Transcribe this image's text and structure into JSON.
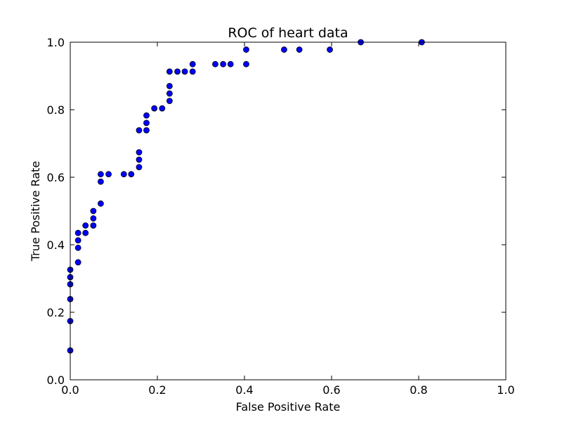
{
  "chart_data": {
    "type": "scatter",
    "title": "ROC of heart data",
    "xlabel": "False Positive Rate",
    "ylabel": "True Positive Rate",
    "xlim": [
      0.0,
      1.0
    ],
    "ylim": [
      0.0,
      1.0
    ],
    "xticks": [
      "0.0",
      "0.2",
      "0.4",
      "0.6",
      "0.8",
      "1.0"
    ],
    "yticks": [
      "0.0",
      "0.2",
      "0.4",
      "0.6",
      "0.8",
      "1.0"
    ],
    "grid": false,
    "marker_color": "#0000ff",
    "marker_edge_color": "#000000",
    "points": [
      [
        0.0,
        0.087
      ],
      [
        0.0,
        0.174
      ],
      [
        0.0,
        0.239
      ],
      [
        0.0,
        0.283
      ],
      [
        0.0,
        0.304
      ],
      [
        0.0,
        0.326
      ],
      [
        0.018,
        0.348
      ],
      [
        0.018,
        0.391
      ],
      [
        0.018,
        0.413
      ],
      [
        0.018,
        0.435
      ],
      [
        0.035,
        0.435
      ],
      [
        0.035,
        0.457
      ],
      [
        0.053,
        0.457
      ],
      [
        0.053,
        0.478
      ],
      [
        0.053,
        0.5
      ],
      [
        0.07,
        0.522
      ],
      [
        0.07,
        0.587
      ],
      [
        0.07,
        0.609
      ],
      [
        0.088,
        0.609
      ],
      [
        0.123,
        0.609
      ],
      [
        0.14,
        0.609
      ],
      [
        0.158,
        0.63
      ],
      [
        0.158,
        0.652
      ],
      [
        0.158,
        0.674
      ],
      [
        0.158,
        0.739
      ],
      [
        0.175,
        0.739
      ],
      [
        0.175,
        0.761
      ],
      [
        0.175,
        0.783
      ],
      [
        0.193,
        0.804
      ],
      [
        0.211,
        0.804
      ],
      [
        0.228,
        0.826
      ],
      [
        0.228,
        0.848
      ],
      [
        0.228,
        0.87
      ],
      [
        0.228,
        0.913
      ],
      [
        0.246,
        0.913
      ],
      [
        0.263,
        0.913
      ],
      [
        0.281,
        0.913
      ],
      [
        0.281,
        0.935
      ],
      [
        0.333,
        0.935
      ],
      [
        0.351,
        0.935
      ],
      [
        0.368,
        0.935
      ],
      [
        0.404,
        0.935
      ],
      [
        0.404,
        0.978
      ],
      [
        0.491,
        0.978
      ],
      [
        0.526,
        0.978
      ],
      [
        0.596,
        0.978
      ],
      [
        0.667,
        1.0
      ],
      [
        0.807,
        1.0
      ]
    ]
  }
}
